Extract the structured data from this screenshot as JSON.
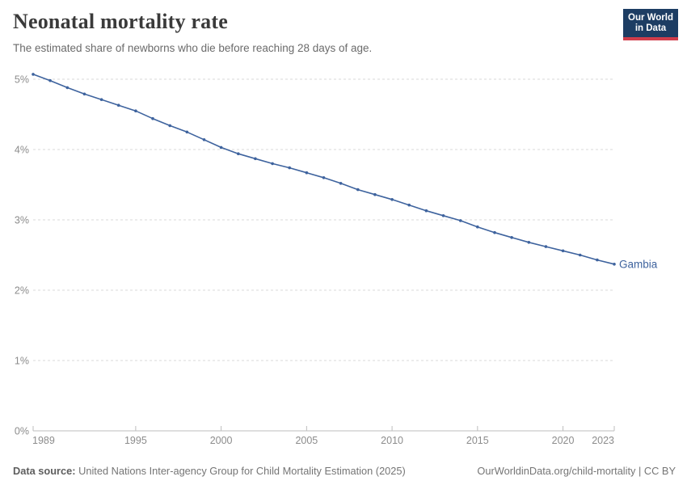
{
  "header": {
    "title": "Neonatal mortality rate",
    "subtitle": "The estimated share of newborns who die before reaching 28 days of age.",
    "logo": {
      "line1": "Our World",
      "line2": "in Data"
    }
  },
  "chart_data": {
    "type": "line",
    "title": "Neonatal mortality rate",
    "xlabel": "",
    "ylabel": "",
    "unit": "%",
    "xlim": [
      1989,
      2023
    ],
    "ylim": [
      0,
      5
    ],
    "grid": "horizontal-dashed",
    "legend_position": "end-of-line-label",
    "x_ticks": [
      1989,
      1995,
      2000,
      2005,
      2010,
      2015,
      2020,
      2023
    ],
    "y_ticks": [
      "0%",
      "1%",
      "2%",
      "3%",
      "4%",
      "5%"
    ],
    "series": [
      {
        "name": "Gambia",
        "color": "#3e639e",
        "x": [
          1989,
          1990,
          1991,
          1992,
          1993,
          1994,
          1995,
          1996,
          1997,
          1998,
          1999,
          2000,
          2001,
          2002,
          2003,
          2004,
          2005,
          2006,
          2007,
          2008,
          2009,
          2010,
          2011,
          2012,
          2013,
          2014,
          2015,
          2016,
          2017,
          2018,
          2019,
          2020,
          2021,
          2022,
          2023
        ],
        "values": [
          5.07,
          4.98,
          4.88,
          4.79,
          4.71,
          4.63,
          4.55,
          4.44,
          4.34,
          4.25,
          4.14,
          4.03,
          3.94,
          3.87,
          3.8,
          3.74,
          3.67,
          3.6,
          3.52,
          3.43,
          3.36,
          3.29,
          3.21,
          3.13,
          3.06,
          2.99,
          2.9,
          2.82,
          2.75,
          2.68,
          2.62,
          2.56,
          2.5,
          2.43,
          2.37
        ]
      }
    ]
  },
  "footer": {
    "datasource_label": "Data source:",
    "datasource": "United Nations Inter-agency Group for Child Mortality Estimation (2025)",
    "attribution": "OurWorldinData.org/child-mortality | CC BY"
  },
  "theme": {
    "title": "#3a3a3a",
    "subtitle": "#6b6b6b",
    "tick_label": "#8c8c8c",
    "grid": "#d9d9d9",
    "axis": "#bdbdbd",
    "footer": "#757575",
    "footer_label": "#5e5e5e",
    "logo_bg": "#1d3d63",
    "logo_accent": "#d13d4b",
    "line": "#3e639e"
  }
}
